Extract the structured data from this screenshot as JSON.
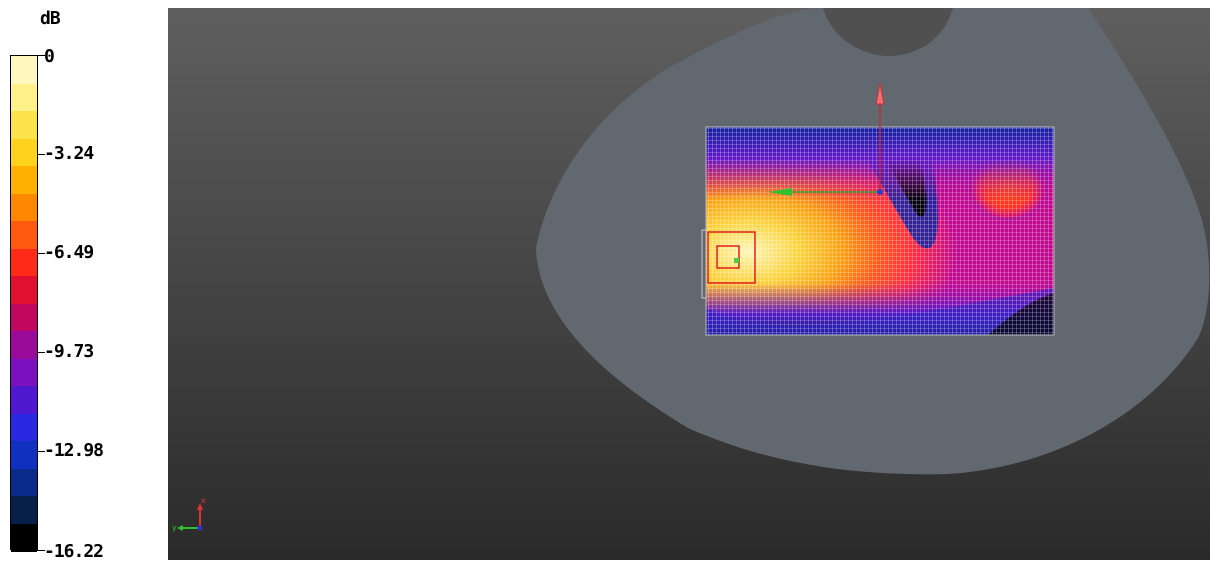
{
  "legend": {
    "unit": "dB",
    "labels": [
      "0",
      "-3.24",
      "-6.49",
      "-9.73",
      "-12.98",
      "-16.22"
    ],
    "colors": [
      "#fff8c0",
      "#fff08a",
      "#ffe34a",
      "#ffd21e",
      "#ffb000",
      "#ff8800",
      "#ff5a10",
      "#ff2a18",
      "#e01030",
      "#c00860",
      "#9a0a9a",
      "#7a10c0",
      "#5018d0",
      "#2a28e0",
      "#1030c0",
      "#0a2a8c",
      "#06204a",
      "#000000"
    ]
  },
  "viewport": {
    "phantom_color": "#636970",
    "grid_colors": {
      "hot": "#fff5b0",
      "mid": "#ff9820",
      "red": "#ff4418",
      "magenta": "#c80aa0",
      "violet": "#5014c8",
      "blue": "#1030b0",
      "black": "#000000"
    },
    "axis_colors": {
      "x": "#e02020",
      "y": "#20c020",
      "z": "#2020e0"
    }
  }
}
